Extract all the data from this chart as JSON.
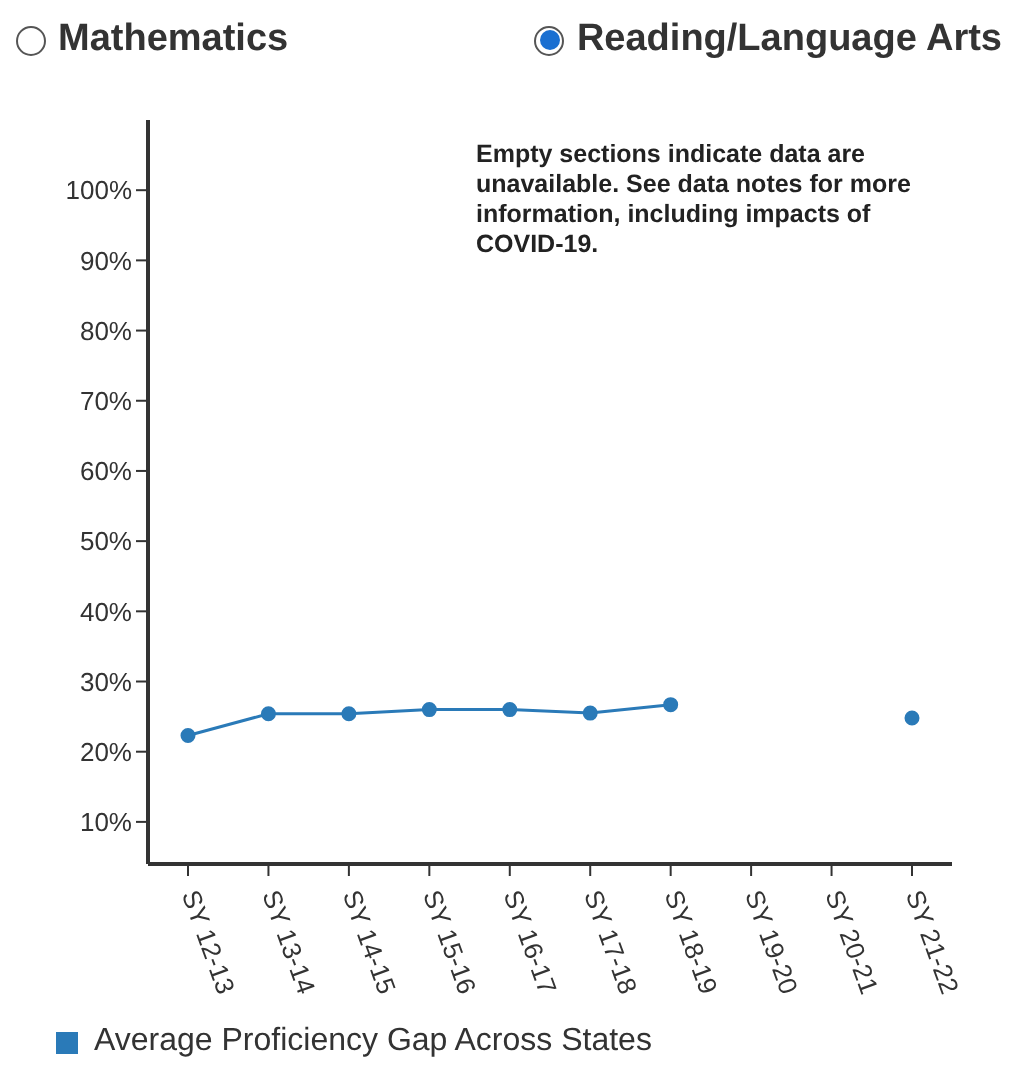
{
  "chart_data": {
    "type": "line",
    "categories": [
      "SY 12-13",
      "SY 13-14",
      "SY 14-15",
      "SY 15-16",
      "SY 16-17",
      "SY 17-18",
      "SY 18-19",
      "SY 19-20",
      "SY 20-21",
      "SY 21-22"
    ],
    "series": [
      {
        "name": "Average Proficiency Gap Across States",
        "color": "#2a7ab8",
        "values": [
          22.3,
          25.4,
          25.4,
          26,
          26,
          25.5,
          26.7,
          null,
          null,
          24.8
        ]
      }
    ],
    "ylim": [
      4,
      110
    ],
    "yticks": [
      {
        "value": 10,
        "label": "10%"
      },
      {
        "value": 20,
        "label": "20%"
      },
      {
        "value": 30,
        "label": "30%"
      },
      {
        "value": 40,
        "label": "40%"
      },
      {
        "value": 50,
        "label": "50%"
      },
      {
        "value": 60,
        "label": "60%"
      },
      {
        "value": 70,
        "label": "70%"
      },
      {
        "value": 80,
        "label": "80%"
      },
      {
        "value": 90,
        "label": "90%"
      },
      {
        "value": 100,
        "label": "100%"
      }
    ],
    "annotations": [
      "Mathematics",
      "Reading/Language Arts",
      "Empty sections indicate data are unavailable. See data notes for more information, including impacts of COVID-19."
    ],
    "marker": "circle",
    "line_style": "solid",
    "grid": false,
    "legend": "bottom"
  }
}
